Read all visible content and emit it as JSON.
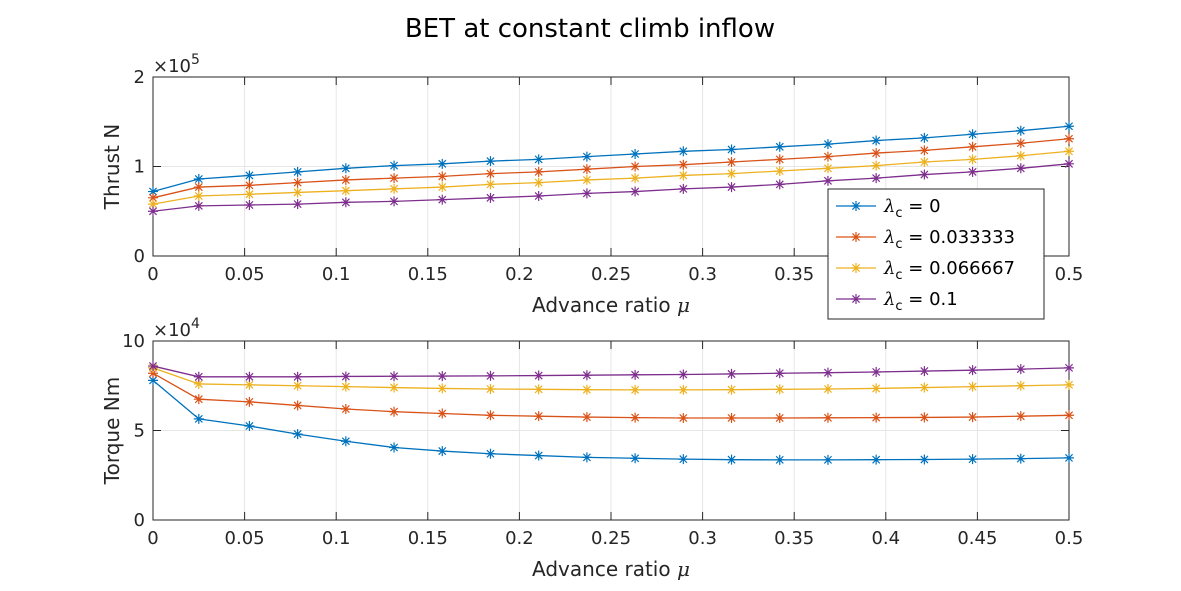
{
  "chart_data": {
    "title": "BET at constant climb inflow",
    "colors": [
      "#0072BD",
      "#D95319",
      "#EDB120",
      "#7E2F8E"
    ],
    "legend": {
      "position": "inside-right-overlapping-top-panel",
      "symbol": "λ",
      "subscript": "c",
      "entries": [
        " = 0",
        " = 0.033333",
        " = 0.066667",
        " = 0.1"
      ]
    },
    "x": [
      0,
      0.025,
      0.052632,
      0.078947,
      0.105263,
      0.131579,
      0.157895,
      0.184211,
      0.210526,
      0.236842,
      0.263158,
      0.289474,
      0.315789,
      0.342105,
      0.368421,
      0.394737,
      0.421053,
      0.447368,
      0.473684,
      0.5
    ],
    "panels": [
      {
        "id": "thrust",
        "type": "line",
        "marker": "asterisk",
        "ylabel": "Thrust N",
        "xlabel": "Advance ratio ",
        "xlabel_symbol": "μ",
        "exponent_label": "×10",
        "exponent_power": "5",
        "ylim": [
          0,
          2
        ],
        "yticks": [
          0,
          1,
          2
        ],
        "ytick_labels": [
          "0",
          "1",
          "2"
        ],
        "xlim": [
          0,
          0.5
        ],
        "xticks": [
          0,
          0.05,
          0.1,
          0.15,
          0.2,
          0.25,
          0.3,
          0.35,
          0.4,
          0.45,
          0.5
        ],
        "xtick_labels": [
          "0",
          "0.05",
          "0.1",
          "0.15",
          "0.2",
          "0.25",
          "0.3",
          "0.35",
          "0.4",
          "0.45",
          "0.5"
        ],
        "grid": true,
        "series": [
          {
            "values": [
              0.72,
              0.86,
              0.9,
              0.94,
              0.98,
              1.01,
              1.03,
              1.06,
              1.08,
              1.11,
              1.14,
              1.17,
              1.19,
              1.22,
              1.25,
              1.29,
              1.32,
              1.36,
              1.4,
              1.45
            ]
          },
          {
            "values": [
              0.65,
              0.77,
              0.79,
              0.82,
              0.85,
              0.87,
              0.89,
              0.92,
              0.94,
              0.97,
              1.0,
              1.02,
              1.05,
              1.08,
              1.11,
              1.15,
              1.18,
              1.22,
              1.26,
              1.31
            ]
          },
          {
            "values": [
              0.58,
              0.67,
              0.69,
              0.71,
              0.73,
              0.75,
              0.77,
              0.8,
              0.82,
              0.85,
              0.87,
              0.9,
              0.92,
              0.95,
              0.98,
              1.01,
              1.05,
              1.08,
              1.12,
              1.17
            ]
          },
          {
            "values": [
              0.5,
              0.56,
              0.57,
              0.58,
              0.6,
              0.61,
              0.63,
              0.65,
              0.67,
              0.7,
              0.72,
              0.75,
              0.77,
              0.8,
              0.84,
              0.87,
              0.91,
              0.94,
              0.98,
              1.03
            ]
          }
        ]
      },
      {
        "id": "torque",
        "type": "line",
        "marker": "asterisk",
        "ylabel": "Torque Nm",
        "xlabel": "Advance ratio ",
        "xlabel_symbol": "μ",
        "exponent_label": "×10",
        "exponent_power": "4",
        "ylim": [
          0,
          10
        ],
        "yticks": [
          0,
          5,
          10
        ],
        "ytick_labels": [
          "0",
          "5",
          "10"
        ],
        "xlim": [
          0,
          0.5
        ],
        "xticks": [
          0,
          0.05,
          0.1,
          0.15,
          0.2,
          0.25,
          0.3,
          0.35,
          0.4,
          0.45,
          0.5
        ],
        "xtick_labels": [
          "0",
          "0.05",
          "0.1",
          "0.15",
          "0.2",
          "0.25",
          "0.3",
          "0.35",
          "0.4",
          "0.45",
          "0.5"
        ],
        "grid": true,
        "series": [
          {
            "values": [
              7.8,
              5.65,
              5.25,
              4.8,
              4.4,
              4.05,
              3.85,
              3.7,
              3.6,
              3.5,
              3.45,
              3.4,
              3.37,
              3.36,
              3.36,
              3.37,
              3.38,
              3.4,
              3.43,
              3.47
            ]
          },
          {
            "values": [
              8.2,
              6.75,
              6.6,
              6.4,
              6.2,
              6.05,
              5.95,
              5.85,
              5.8,
              5.75,
              5.72,
              5.7,
              5.7,
              5.7,
              5.71,
              5.72,
              5.73,
              5.75,
              5.8,
              5.85
            ]
          },
          {
            "values": [
              8.5,
              7.6,
              7.55,
              7.5,
              7.45,
              7.4,
              7.35,
              7.32,
              7.3,
              7.28,
              7.27,
              7.27,
              7.28,
              7.3,
              7.32,
              7.35,
              7.4,
              7.45,
              7.5,
              7.55
            ]
          },
          {
            "values": [
              8.6,
              8.0,
              8.0,
              8.0,
              8.02,
              8.03,
              8.04,
              8.05,
              8.07,
              8.09,
              8.11,
              8.13,
              8.16,
              8.2,
              8.23,
              8.27,
              8.32,
              8.37,
              8.43,
              8.5
            ]
          }
        ]
      }
    ]
  }
}
